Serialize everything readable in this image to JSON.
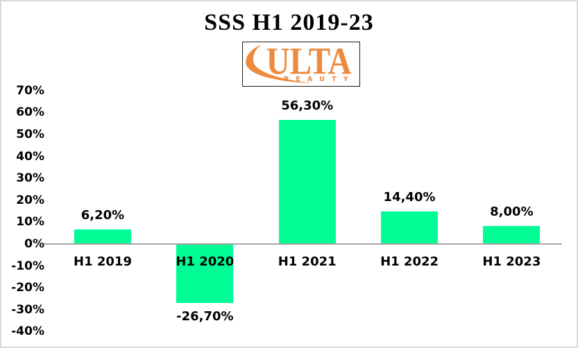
{
  "title": "SSS H1 2019-23",
  "logo": {
    "brand": "ULTA",
    "sub": "BEAUTY",
    "color": "#EE8A3D"
  },
  "chart_data": {
    "type": "bar",
    "title": "SSS H1 2019-23",
    "categories": [
      "H1 2019",
      "H1 2020",
      "H1 2021",
      "H1 2022",
      "H1 2023"
    ],
    "values": [
      6.2,
      -26.7,
      56.3,
      14.4,
      8.0
    ],
    "value_labels": [
      "6,20%",
      "-26,70%",
      "56,30%",
      "14,40%",
      "8,00%"
    ],
    "xlabel": "",
    "ylabel": "",
    "ylim": [
      -40,
      70
    ],
    "ytick_step": 10,
    "yticks": [
      {
        "value": 70,
        "label": "70%"
      },
      {
        "value": 60,
        "label": "60%"
      },
      {
        "value": 50,
        "label": "50%"
      },
      {
        "value": 40,
        "label": "40%"
      },
      {
        "value": 30,
        "label": "30%"
      },
      {
        "value": 20,
        "label": "20%"
      },
      {
        "value": 10,
        "label": "10%"
      },
      {
        "value": 0,
        "label": "0%"
      },
      {
        "value": -10,
        "label": "-10%"
      },
      {
        "value": -20,
        "label": "-20%"
      },
      {
        "value": -30,
        "label": "-30%"
      },
      {
        "value": -40,
        "label": "-40%"
      }
    ],
    "grid": false,
    "legend": "none",
    "bar_color": "#00FC94",
    "axis_line_color": "#A6A6A6",
    "label_color": "#000000"
  }
}
